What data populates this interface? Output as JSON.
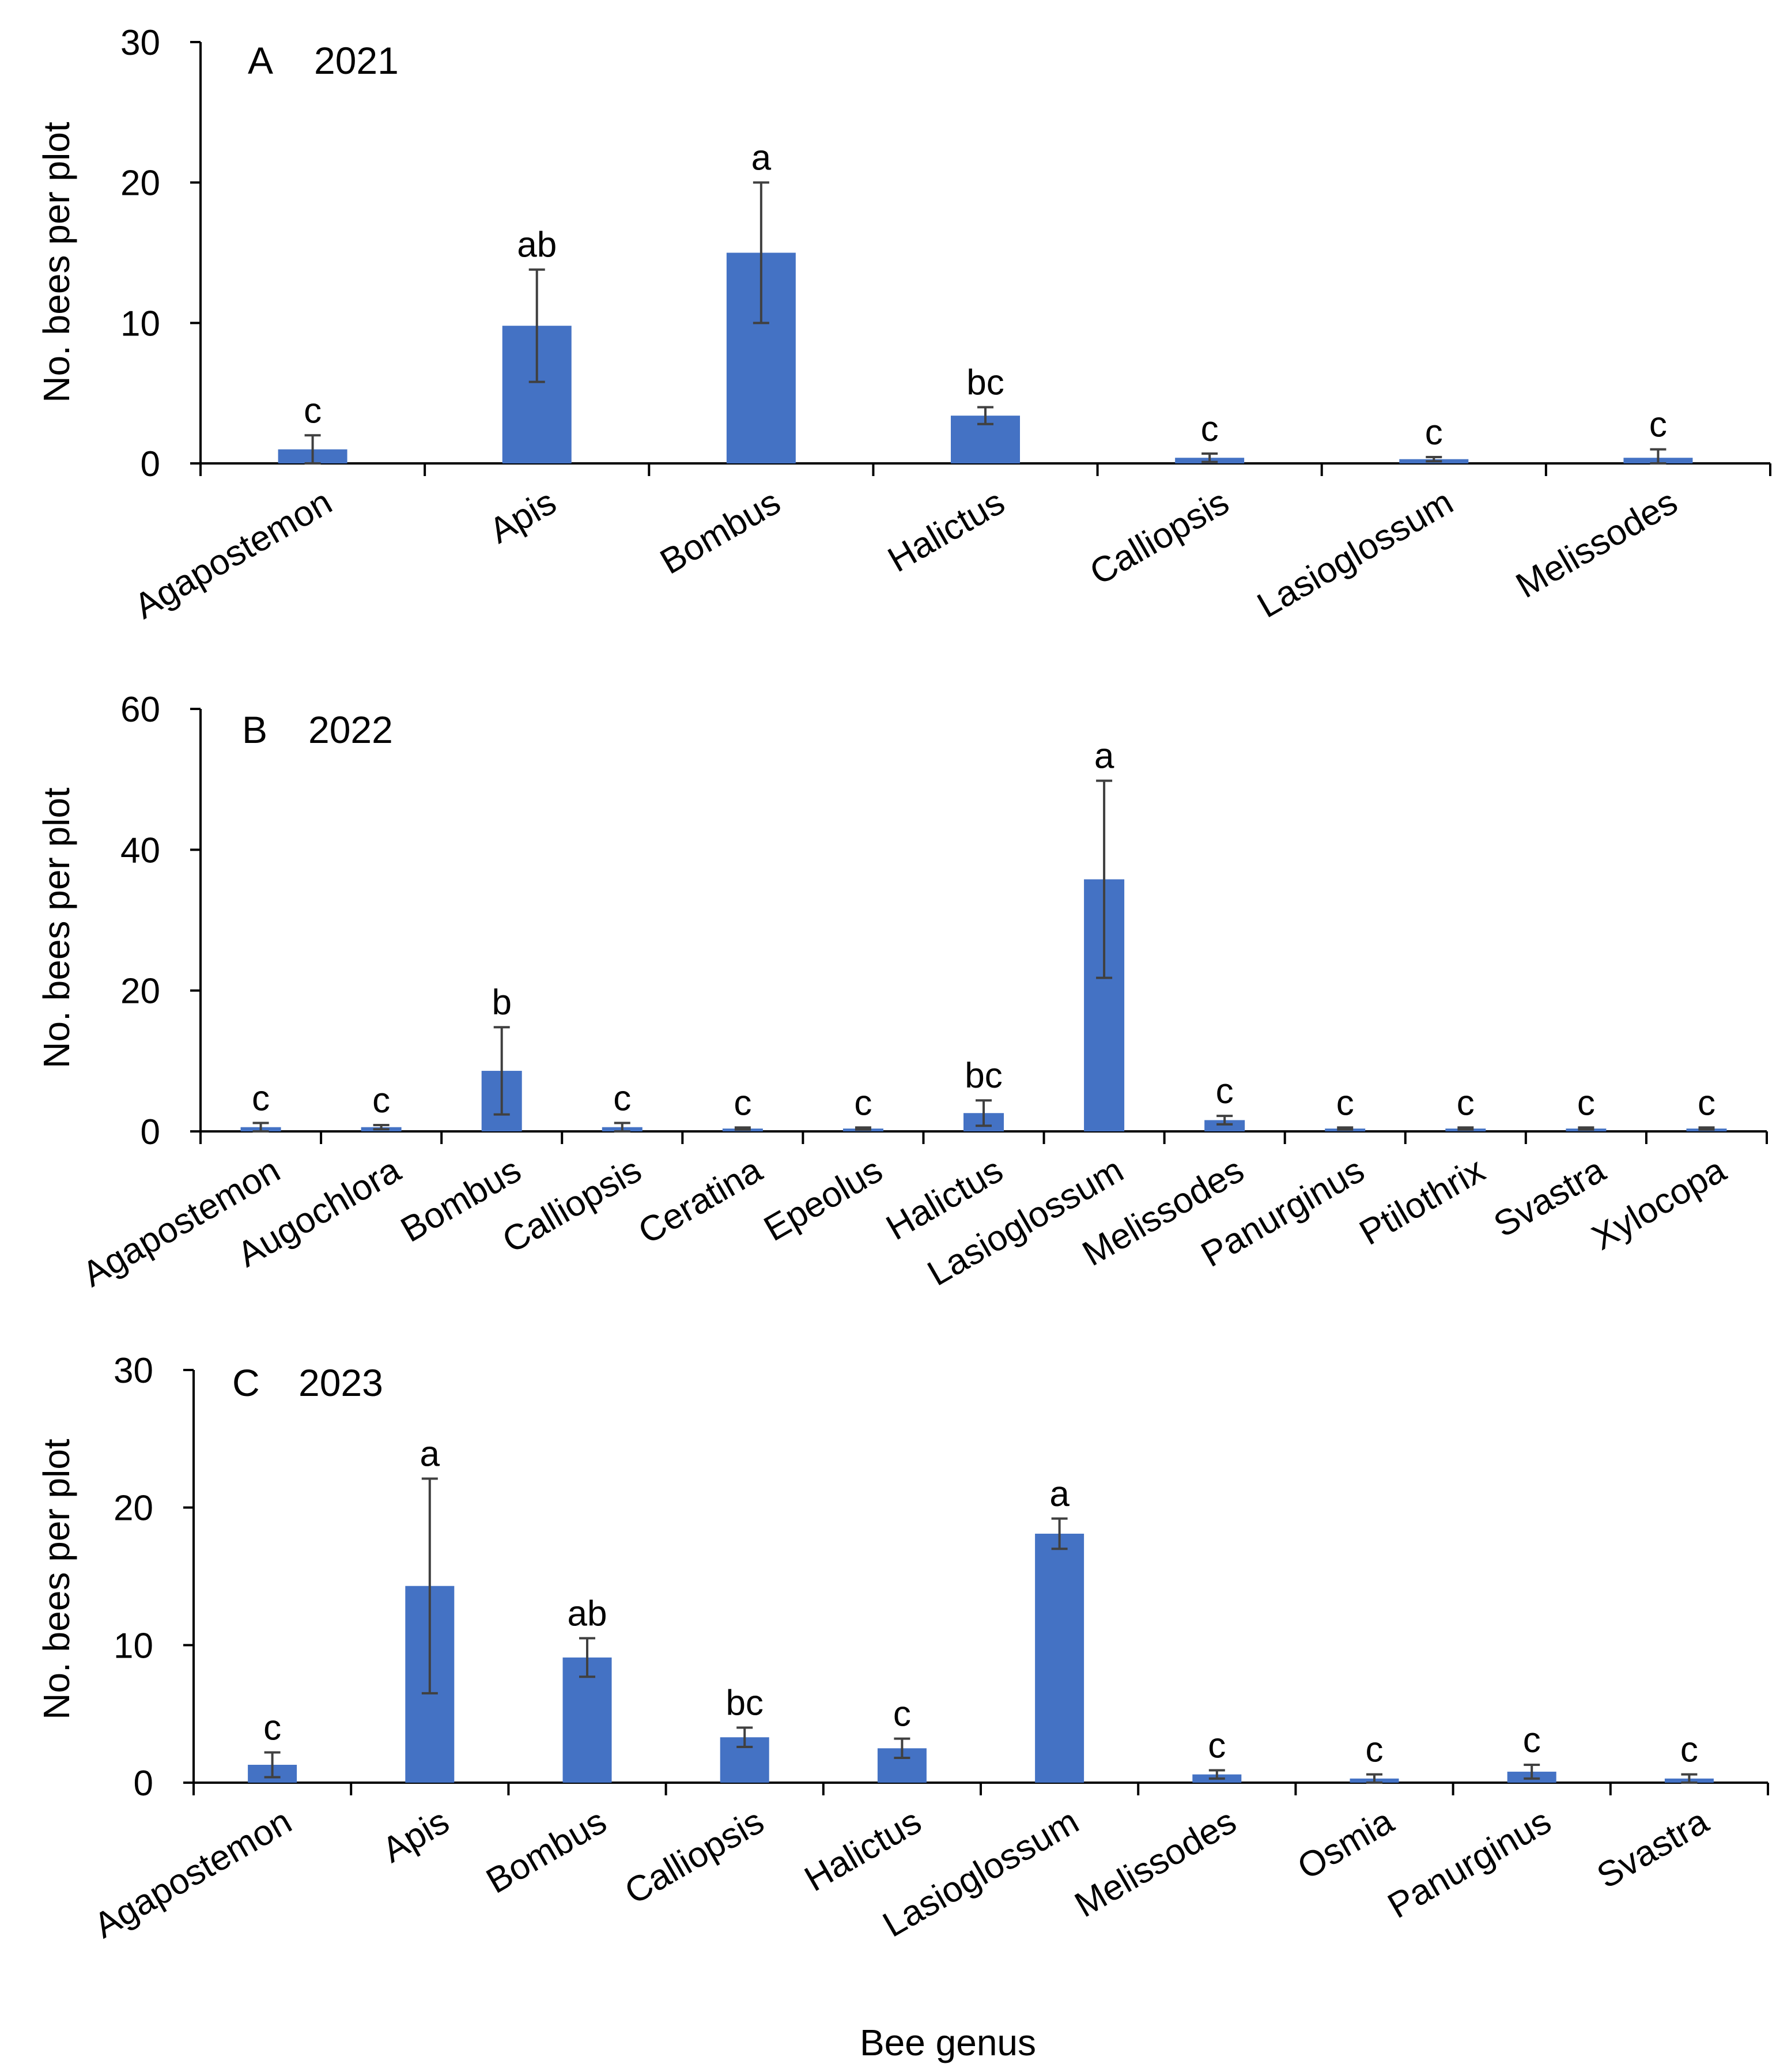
{
  "figure": {
    "xlabel": "Bee genus",
    "bar_color": "#4472C4",
    "error_color": "#404040"
  },
  "chart_data": [
    {
      "type": "bar",
      "panel": "A",
      "year": "2021",
      "ylabel": "No. bees per plot",
      "ylim": [
        0,
        30
      ],
      "yticks": [
        "0",
        "10",
        "20",
        "30"
      ],
      "categories": [
        "Agapostemon",
        "Apis",
        "Bombus",
        "Halictus",
        "Calliopsis",
        "Lasioglossum",
        "Melissodes"
      ],
      "values": [
        1.0,
        9.8,
        15.0,
        3.4,
        0.4,
        0.3,
        0.4
      ],
      "error": [
        1.0,
        4.0,
        5.0,
        0.6,
        0.3,
        0.15,
        0.6
      ],
      "letters": [
        "c",
        "ab",
        "a",
        "bc",
        "c",
        "c",
        "c"
      ]
    },
    {
      "type": "bar",
      "panel": "B",
      "year": "2022",
      "ylabel": "No. bees per plot",
      "ylim": [
        0,
        60
      ],
      "yticks": [
        "0",
        "20",
        "40",
        "60"
      ],
      "categories": [
        "Agapostemon",
        "Augochlora",
        "Bombus",
        "Calliopsis",
        "Ceratina",
        "Epeolus",
        "Halictus",
        "Lasioglossum",
        "Melissodes",
        "Panurginus",
        "Ptilothrix",
        "Svastra",
        "Xylocopa"
      ],
      "values": [
        0.6,
        0.6,
        8.6,
        0.6,
        0.4,
        0.4,
        2.6,
        35.8,
        1.6,
        0.4,
        0.4,
        0.4,
        0.4
      ],
      "error": [
        0.6,
        0.3,
        6.2,
        0.6,
        0.15,
        0.15,
        1.8,
        14.0,
        0.6,
        0.15,
        0.15,
        0.15,
        0.15
      ],
      "letters": [
        "c",
        "c",
        "b",
        "c",
        "c",
        "c",
        "bc",
        "a",
        "c",
        "c",
        "c",
        "c",
        "c"
      ]
    },
    {
      "type": "bar",
      "panel": "C",
      "year": "2023",
      "ylabel": "No. bees per plot",
      "ylim": [
        0,
        30
      ],
      "yticks": [
        "0",
        "10",
        "20",
        "30"
      ],
      "categories": [
        "Agapostemon",
        "Apis",
        "Bombus",
        "Calliopsis",
        "Halictus",
        "Lasioglossum",
        "Melissodes",
        "Osmia",
        "Panurginus",
        "Svastra"
      ],
      "values": [
        1.3,
        14.3,
        9.1,
        3.3,
        2.5,
        18.1,
        0.6,
        0.3,
        0.8,
        0.3
      ],
      "error": [
        0.9,
        7.8,
        1.4,
        0.7,
        0.7,
        1.1,
        0.3,
        0.3,
        0.5,
        0.3
      ],
      "letters": [
        "c",
        "a",
        "ab",
        "bc",
        "c",
        "a",
        "c",
        "c",
        "c",
        "c"
      ]
    }
  ]
}
